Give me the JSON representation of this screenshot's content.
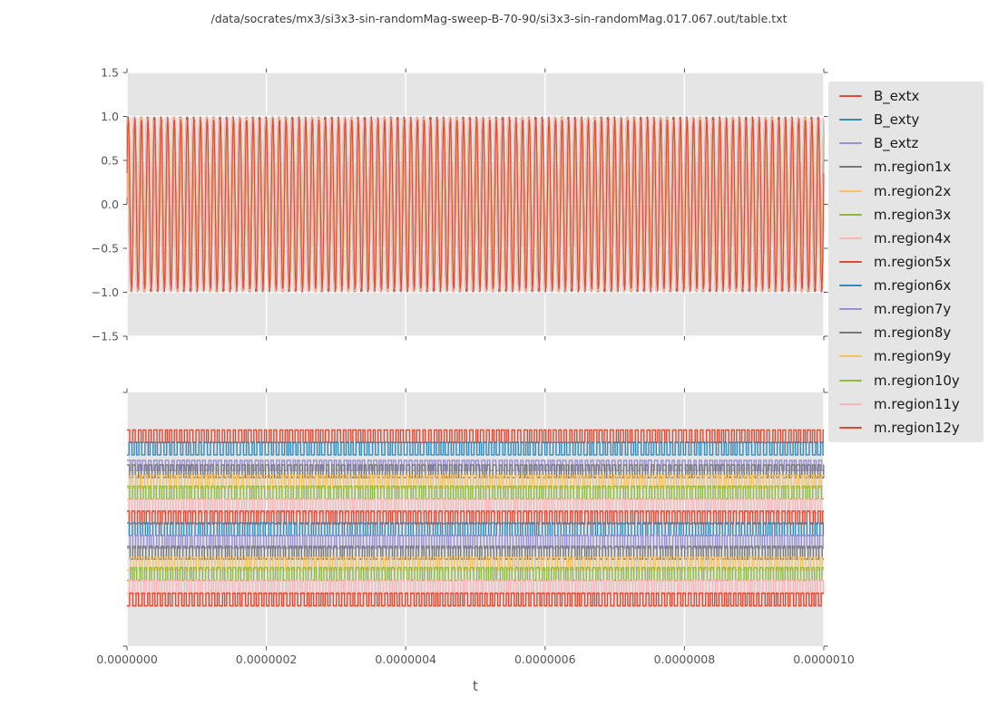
{
  "figure": {
    "title": "/data/socrates/mx3/si3x3-sin-randomMag-sweep-B-70-90/si3x3-sin-randomMag.017.067.out/table.txt",
    "background": "#ffffff"
  },
  "style": {
    "axes_face": "#e5e5e5",
    "grid_color": "#ffffff",
    "tick_color": "#555555",
    "tick_label_color": "#555555",
    "legend_face": "#e5e5e5",
    "legend_text_color": "#1a1a1a"
  },
  "x_axis": {
    "label": "t",
    "tick_labels": [
      "0.0000000",
      "0.0000002",
      "0.0000004",
      "0.0000006",
      "0.0000008",
      "0.0000010"
    ]
  },
  "top_y_axis": {
    "tick_labels": [
      "1.5",
      "1.0",
      "0.5",
      "0.0",
      "−0.5",
      "−1.0",
      "−1.5"
    ]
  },
  "chart_data": [
    {
      "type": "line",
      "subplot": "top",
      "xlim": [
        0.0,
        1e-06
      ],
      "ylim": [
        -1.5,
        1.5
      ],
      "x_ticks": [
        0.0,
        2e-07,
        4e-07,
        6e-07,
        8e-07,
        1e-06
      ],
      "y_ticks": [
        1.5,
        1.0,
        0.5,
        0.0,
        -0.5,
        -1.0,
        -1.5
      ],
      "grid": true,
      "legend_position": "outside-right",
      "description": "15 overlapping high-frequency sinusoids (~106 cycles over the span) oscillating between -1 and +1",
      "series": [
        {
          "name": "B_extx",
          "color": "#E24A33",
          "waveform": "sine",
          "amplitude": 1.0,
          "cycles": 106,
          "phase": 0.0
        },
        {
          "name": "B_exty",
          "color": "#348ABD",
          "waveform": "sine",
          "amplitude": 1.0,
          "cycles": 106,
          "phase": 0.78
        },
        {
          "name": "B_extz",
          "color": "#988ED5",
          "waveform": "sine",
          "amplitude": 0.99,
          "cycles": 106,
          "phase": 0.3
        },
        {
          "name": "m.region1x",
          "color": "#777777",
          "waveform": "sine",
          "amplitude": 0.985,
          "cycles": 106,
          "phase": 1.1
        },
        {
          "name": "m.region2x",
          "color": "#FBC15E",
          "waveform": "sine",
          "amplitude": 1.0,
          "cycles": 106,
          "phase": 0.5
        },
        {
          "name": "m.region3x",
          "color": "#8EBA42",
          "waveform": "sine",
          "amplitude": 0.975,
          "cycles": 106,
          "phase": 1.32
        },
        {
          "name": "m.region4x",
          "color": "#FFB5B8",
          "waveform": "sine",
          "amplitude": 0.99,
          "cycles": 106,
          "phase": 0.18
        },
        {
          "name": "m.region5x",
          "color": "#E24A33",
          "waveform": "sine",
          "amplitude": 1.0,
          "cycles": 106,
          "phase": 0.92
        },
        {
          "name": "m.region6x",
          "color": "#348ABD",
          "waveform": "sine",
          "amplitude": 0.98,
          "cycles": 106,
          "phase": 1.5
        },
        {
          "name": "m.region7y",
          "color": "#988ED5",
          "waveform": "sine",
          "amplitude": 0.97,
          "cycles": 106,
          "phase": 0.62
        },
        {
          "name": "m.region8y",
          "color": "#777777",
          "waveform": "sine",
          "amplitude": 1.0,
          "cycles": 106,
          "phase": 1.2
        },
        {
          "name": "m.region9y",
          "color": "#FBC15E",
          "waveform": "sine",
          "amplitude": 0.995,
          "cycles": 106,
          "phase": 0.08
        },
        {
          "name": "m.region10y",
          "color": "#8EBA42",
          "waveform": "sine",
          "amplitude": 0.98,
          "cycles": 106,
          "phase": 0.85
        },
        {
          "name": "m.region11y",
          "color": "#FFB5B8",
          "waveform": "sine",
          "amplitude": 1.0,
          "cycles": 106,
          "phase": 1.42
        },
        {
          "name": "m.region12y",
          "color": "#E24A33",
          "waveform": "sine",
          "amplitude": 1.0,
          "cycles": 106,
          "phase": 0.36
        }
      ]
    },
    {
      "type": "line",
      "subplot": "bottom",
      "xlim": [
        0.0,
        1e-06
      ],
      "ylim": [
        0,
        1
      ],
      "x_ticks": [
        0.0,
        2e-07,
        4e-07,
        6e-07,
        8e-07,
        1e-06
      ],
      "y_tick_labels_visible": false,
      "grid": "x-only",
      "description": "Same 15 series shown as narrow square-wave bands (~132 cycles) stacked at descending offsets; vertical positions are fractions of axis height",
      "series": [
        {
          "name": "B_extx",
          "color": "#E24A33",
          "waveform": "square",
          "center": 0.827,
          "half_amplitude": 0.025,
          "cycles": 132,
          "seed": 11
        },
        {
          "name": "B_exty",
          "color": "#348ABD",
          "waveform": "square",
          "center": 0.779,
          "half_amplitude": 0.025,
          "cycles": 130,
          "seed": 23
        },
        {
          "name": "B_extz",
          "color": "#988ED5",
          "waveform": "square",
          "center": 0.712,
          "half_amplitude": 0.02,
          "cycles": 133,
          "seed": 37
        },
        {
          "name": "m.region1x",
          "color": "#777777",
          "waveform": "square",
          "center": 0.689,
          "half_amplitude": 0.025,
          "cycles": 131,
          "seed": 41
        },
        {
          "name": "m.region2x",
          "color": "#FBC15E",
          "waveform": "square",
          "center": 0.648,
          "half_amplitude": 0.025,
          "cycles": 134,
          "seed": 53
        },
        {
          "name": "m.region3x",
          "color": "#8EBA42",
          "waveform": "square",
          "center": 0.605,
          "half_amplitude": 0.025,
          "cycles": 129,
          "seed": 67
        },
        {
          "name": "m.region4x",
          "color": "#FFB5B8",
          "waveform": "square",
          "center": 0.552,
          "half_amplitude": 0.027,
          "cycles": 132,
          "seed": 71
        },
        {
          "name": "m.region5x",
          "color": "#E24A33",
          "waveform": "square",
          "center": 0.507,
          "half_amplitude": 0.025,
          "cycles": 135,
          "seed": 83
        },
        {
          "name": "m.region6x",
          "color": "#348ABD",
          "waveform": "square",
          "center": 0.461,
          "half_amplitude": 0.025,
          "cycles": 130,
          "seed": 97
        },
        {
          "name": "m.region7y",
          "color": "#988ED5",
          "waveform": "square",
          "center": 0.411,
          "half_amplitude": 0.025,
          "cycles": 133,
          "seed": 101
        },
        {
          "name": "m.region8y",
          "color": "#777777",
          "waveform": "square",
          "center": 0.368,
          "half_amplitude": 0.025,
          "cycles": 128,
          "seed": 113
        },
        {
          "name": "m.region9y",
          "color": "#FBC15E",
          "waveform": "square",
          "center": 0.325,
          "half_amplitude": 0.025,
          "cycles": 134,
          "seed": 127
        },
        {
          "name": "m.region10y",
          "color": "#8EBA42",
          "waveform": "square",
          "center": 0.284,
          "half_amplitude": 0.025,
          "cycles": 131,
          "seed": 131
        },
        {
          "name": "m.region11y",
          "color": "#FFB5B8",
          "waveform": "square",
          "center": 0.232,
          "half_amplitude": 0.027,
          "cycles": 129,
          "seed": 139
        },
        {
          "name": "m.region12y",
          "color": "#E24A33",
          "waveform": "square",
          "center": 0.184,
          "half_amplitude": 0.025,
          "cycles": 133,
          "seed": 149
        }
      ]
    }
  ]
}
